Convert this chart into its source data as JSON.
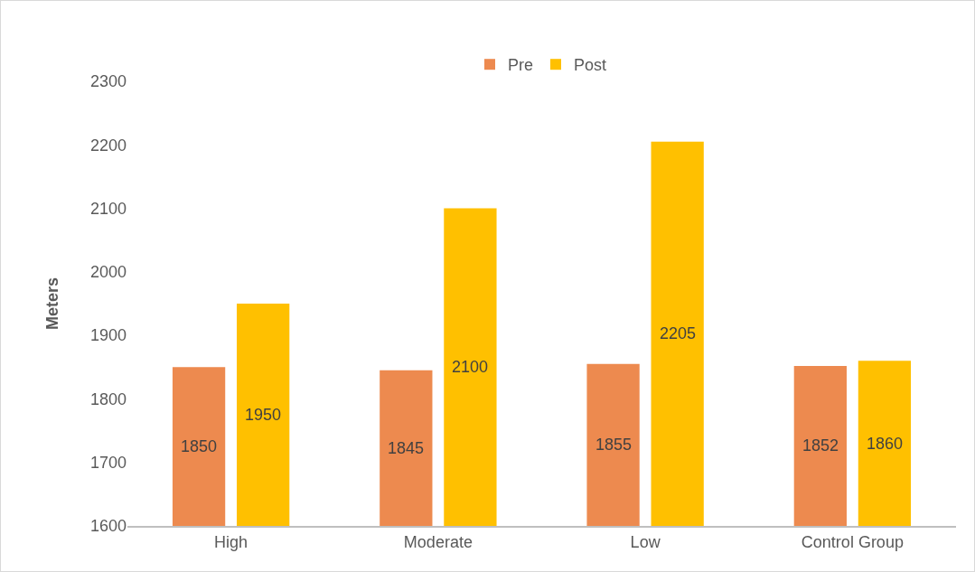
{
  "chart_data": {
    "type": "bar",
    "ylabel": "Meters",
    "categories": [
      "High",
      "Moderate",
      "Low",
      "Control Group"
    ],
    "series": [
      {
        "name": "Pre",
        "color": "#ed8a4f",
        "values": [
          1850,
          1845,
          1855,
          1852
        ]
      },
      {
        "name": "Post",
        "color": "#ffc000",
        "values": [
          1950,
          2100,
          2205,
          1860
        ]
      }
    ],
    "ylim": [
      1600,
      2300
    ],
    "yticks": [
      1600,
      1700,
      1800,
      1900,
      2000,
      2100,
      2200,
      2300
    ],
    "data_labels": true,
    "grid": false,
    "legend": "top"
  }
}
